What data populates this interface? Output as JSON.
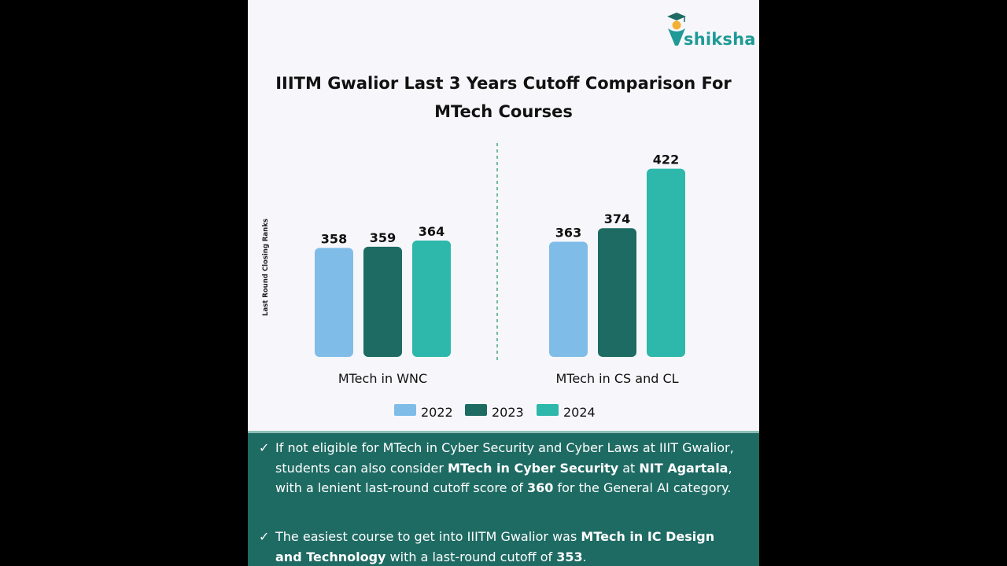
{
  "brand": {
    "name": "shiksha"
  },
  "title": {
    "line1": "IIITM Gwalior Last 3 Years Cutoff Comparison For",
    "line2": "MTech Courses"
  },
  "chart_data": {
    "type": "bar",
    "title": "IIITM Gwalior Last 3 Years Cutoff Comparison For MTech Courses",
    "ylabel": "Last Round Closing Ranks",
    "xlabel": "",
    "categories": [
      "MTech in WNC",
      "MTech in CS and CL"
    ],
    "series": [
      {
        "name": "2022",
        "color": "#7fbde8",
        "values": [
          358,
          363
        ]
      },
      {
        "name": "2023",
        "color": "#1e6b63",
        "values": [
          359,
          374
        ]
      },
      {
        "name": "2024",
        "color": "#2db8ab",
        "values": [
          364,
          422
        ]
      }
    ],
    "ylim": [
      270,
      430
    ],
    "grid": false,
    "legend": "bottom-center",
    "divider": "dashed vertical line between groups"
  },
  "notes": [
    {
      "segments": [
        {
          "text": "If not eligible for MTech in Cyber Security and Cyber Laws at IIIT Gwalior, students can also consider ",
          "bold": false
        },
        {
          "text": "MTech in Cyber Security",
          "bold": true
        },
        {
          "text": " at ",
          "bold": false
        },
        {
          "text": "NIT Agartala",
          "bold": true
        },
        {
          "text": ", with a lenient last-round cutoff score of ",
          "bold": false
        },
        {
          "text": "360",
          "bold": true
        },
        {
          "text": " for the General AI category.",
          "bold": false
        }
      ]
    },
    {
      "segments": [
        {
          "text": "The easiest course to get into IIITM Gwalior was ",
          "bold": false
        },
        {
          "text": "MTech in IC Design and Technology",
          "bold": true
        },
        {
          "text": " with a last-round cutoff of ",
          "bold": false
        },
        {
          "text": "353",
          "bold": true
        },
        {
          "text": ".",
          "bold": false
        }
      ]
    }
  ],
  "colors": {
    "background": "#f7f7fb",
    "notes_panel": "#1e6b63",
    "brand": "#1f9a96",
    "outer": "#000000"
  },
  "icons": {
    "logo": "graduate-cap-logo-icon",
    "check": "check-icon"
  }
}
